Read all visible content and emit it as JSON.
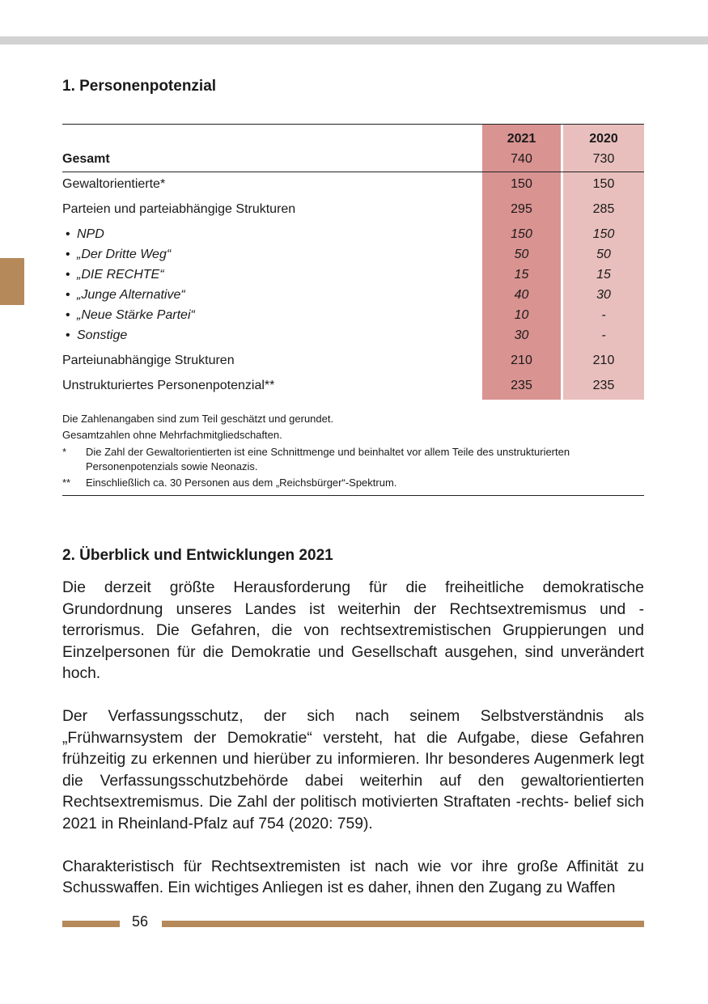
{
  "section1_title": "1. Personenpotenzial",
  "table": {
    "headers": [
      "2021",
      "2020"
    ],
    "total": {
      "label": "Gesamt",
      "v2021": "740",
      "v2020": "730"
    },
    "rows": [
      {
        "label": "Gewaltorientierte*",
        "v2021": "150",
        "v2020": "150"
      },
      {
        "label": "Parteien und parteiabhängige Strukturen",
        "v2021": "295",
        "v2020": "285"
      },
      {
        "label": "NPD",
        "v2021": "150",
        "v2020": "150"
      },
      {
        "label": "„Der Dritte Weg“",
        "v2021": "50",
        "v2020": "50"
      },
      {
        "label": "„DIE RECHTE“",
        "v2021": "15",
        "v2020": "15"
      },
      {
        "label": "„Junge Alternative“",
        "v2021": "40",
        "v2020": "30"
      },
      {
        "label": "„Neue Stärke Partei“",
        "v2021": "10",
        "v2020": "-"
      },
      {
        "label": "Sonstige",
        "v2021": "30",
        "v2020": "-"
      },
      {
        "label": "Parteiunabhängige Strukturen",
        "v2021": "210",
        "v2020": "210"
      },
      {
        "label": "Unstrukturiertes Personenpotenzial**",
        "v2021": "235",
        "v2020": "235"
      }
    ]
  },
  "notes": {
    "line1": "Die Zahlenangaben sind zum Teil geschätzt und gerundet.",
    "line2": "Gesamtzahlen ohne Mehrfachmitgliedschaften.",
    "fn1_marker": "*",
    "fn1": "Die Zahl der Gewaltorientierten ist eine Schnittmenge und beinhaltet vor allem Teile des unstrukturierten Personenpotenzials sowie Neonazis.",
    "fn2_marker": "**",
    "fn2": "Einschließlich ca. 30 Personen aus dem „Reichsbürger“-Spektrum."
  },
  "section2_title": "2. Überblick und Entwicklungen 2021",
  "paragraphs": [
    "Die derzeit größte Herausforderung für die freiheitliche demokratische Grundordnung unseres Landes ist weiterhin der Rechtsextremismus und -terrorismus. Die Gefahren, die von rechtsextremistischen Gruppierungen und Einzelpersonen für die Demokratie und Gesellschaft ausgehen, sind unverändert hoch.",
    "Der Verfassungsschutz, der sich nach seinem Selbstverständnis als „Frühwarnsystem der Demokratie“ versteht, hat die Aufgabe, diese Gefahren frühzeitig zu erkennen und hierüber zu informieren. Ihr besonderes Augenmerk legt die Verfassungsschutzbehörde dabei weiterhin auf den gewaltorientierten Rechtsextremismus. Die Zahl der politisch motivierten Straftaten -rechts- belief sich 2021 in Rheinland-Pfalz auf 754 (2020: 759).",
    "Charakteristisch für Rechtsextremisten ist nach wie vor ihre große Affinität zu Schusswaffen. Ein wichtiges Anliegen ist es daher, ihnen den Zugang zu Waffen"
  ],
  "page_number": "56",
  "colors": {
    "col2021": "#d99391",
    "col2020": "#e8bfbd",
    "accent": "#b5895a"
  }
}
